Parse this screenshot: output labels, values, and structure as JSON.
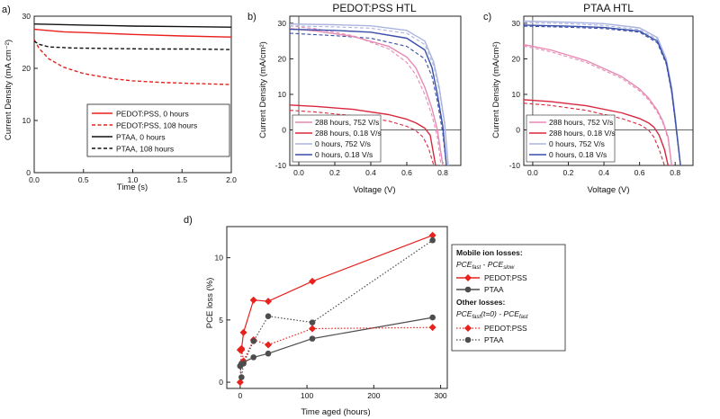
{
  "chart_data": [
    {
      "id": "a",
      "type": "line",
      "panel_label": "a)",
      "title": "",
      "xlabel": "Time (s)",
      "ylabel": "Current Density (mA cm⁻²)",
      "xlim": [
        0,
        2
      ],
      "ylim": [
        0,
        30
      ],
      "xticks": [
        0.0,
        0.5,
        1.0,
        1.5,
        2.0
      ],
      "xtick_labels": [
        "0.0",
        "0.5",
        "1.0",
        "1.5",
        "2.0"
      ],
      "yticks": [
        0,
        10,
        20,
        30
      ],
      "ytick_labels": [
        "0",
        "10",
        "20",
        "30"
      ],
      "legend_position": "bottom-right",
      "series": [
        {
          "name": "PEDOT:PSS, 0 hours",
          "color": "#e8211d",
          "dash": "solid",
          "x": [
            0,
            0.05,
            0.3,
            0.6,
            1.0,
            1.5,
            2.0
          ],
          "y": [
            27.5,
            27.4,
            27.0,
            26.8,
            26.5,
            26.2,
            26.0
          ]
        },
        {
          "name": "PEDOT:PSS, 108 hours",
          "color": "#e8211d",
          "dash": "dashed",
          "x": [
            0,
            0.05,
            0.15,
            0.3,
            0.5,
            0.8,
            1.0,
            1.3,
            1.6,
            2.0
          ],
          "y": [
            25.5,
            23.8,
            21.8,
            20.2,
            19.0,
            18.0,
            17.6,
            17.3,
            17.1,
            16.9
          ]
        },
        {
          "name": "PTAA, 0 hours",
          "color": "#111111",
          "dash": "solid",
          "x": [
            0,
            0.5,
            1.0,
            1.5,
            2.0
          ],
          "y": [
            28.5,
            28.3,
            28.1,
            28.0,
            27.9
          ]
        },
        {
          "name": "PTAA, 108 hours",
          "color": "#111111",
          "dash": "dashed",
          "x": [
            0,
            0.05,
            0.15,
            0.4,
            0.8,
            1.2,
            1.6,
            2.0
          ],
          "y": [
            25.2,
            24.6,
            24.1,
            23.9,
            23.8,
            23.7,
            23.7,
            23.6
          ]
        }
      ]
    },
    {
      "id": "b",
      "type": "line",
      "panel_label": "b)",
      "title": "PEDOT:PSS HTL",
      "xlabel": "Voltage (V)",
      "ylabel": "Current Density (mA/cm²)",
      "xlim": [
        -0.05,
        0.9
      ],
      "ylim": [
        -10,
        32
      ],
      "xticks": [
        0.0,
        0.2,
        0.4,
        0.6,
        0.8
      ],
      "xtick_labels": [
        "0.0",
        "0.2",
        "0.4",
        "0.6",
        "0.8"
      ],
      "yticks": [
        -10,
        0,
        10,
        20,
        30
      ],
      "ytick_labels": [
        "-10",
        "0",
        "10",
        "20",
        "30"
      ],
      "legend_position": "bottom-left",
      "series": [
        {
          "name": "288 hours, 752 V/s",
          "color": "#e78ab4",
          "x": [
            -0.05,
            0.1,
            0.3,
            0.5,
            0.6,
            0.65,
            0.7,
            0.74,
            0.77,
            0.8
          ],
          "y": [
            28.5,
            27.8,
            26.3,
            23.5,
            20.5,
            17.5,
            12.0,
            6.0,
            0.0,
            -10.0
          ]
        },
        {
          "name": "288 hours, 0.18 V/s",
          "color": "#d8273f",
          "x": [
            -0.05,
            0.1,
            0.3,
            0.5,
            0.6,
            0.65,
            0.7,
            0.73,
            0.76
          ],
          "y": [
            7.0,
            6.6,
            5.8,
            4.3,
            3.0,
            2.0,
            0.5,
            -1.5,
            -10.0
          ]
        },
        {
          "name": "0 hours, 752 V/s",
          "color": "#aab4de",
          "x": [
            -0.05,
            0.2,
            0.4,
            0.6,
            0.7,
            0.75,
            0.78,
            0.81,
            0.83
          ],
          "y": [
            29.8,
            29.6,
            29.3,
            28.0,
            25.0,
            19.0,
            12.0,
            2.0,
            -10.0
          ]
        },
        {
          "name": "0 hours, 0.18 V/s",
          "color": "#3a4fa8",
          "x": [
            -0.05,
            0.2,
            0.4,
            0.6,
            0.7,
            0.74,
            0.77,
            0.8,
            0.82
          ],
          "y": [
            28.3,
            28.0,
            27.5,
            25.8,
            22.5,
            17.5,
            10.0,
            1.0,
            -10.0
          ]
        }
      ],
      "dashed_series": [
        {
          "color": "#e78ab4",
          "x": [
            -0.05,
            0.1,
            0.3,
            0.5,
            0.6,
            0.65,
            0.7,
            0.74,
            0.77,
            0.79
          ],
          "y": [
            29.3,
            28.4,
            26.5,
            22.8,
            19.0,
            15.5,
            10.0,
            4.0,
            -2.0,
            -10.0
          ]
        },
        {
          "color": "#d8273f",
          "x": [
            -0.05,
            0.1,
            0.3,
            0.5,
            0.6,
            0.65,
            0.69,
            0.72,
            0.75
          ],
          "y": [
            5.5,
            5.0,
            4.0,
            2.5,
            1.0,
            -0.2,
            -2.0,
            -5.0,
            -10.0
          ]
        },
        {
          "color": "#aab4de",
          "x": [
            -0.05,
            0.2,
            0.4,
            0.6,
            0.7,
            0.75,
            0.78,
            0.81,
            0.83
          ],
          "y": [
            29.3,
            29.0,
            28.6,
            27.2,
            24.0,
            18.0,
            11.0,
            1.5,
            -10.0
          ]
        },
        {
          "color": "#3a4fa8",
          "x": [
            -0.05,
            0.2,
            0.4,
            0.6,
            0.7,
            0.74,
            0.77,
            0.8,
            0.82
          ],
          "y": [
            27.2,
            26.5,
            25.8,
            23.5,
            20.0,
            15.0,
            8.0,
            -1.0,
            -10.0
          ]
        }
      ]
    },
    {
      "id": "c",
      "type": "line",
      "panel_label": "c)",
      "title": "PTAA HTL",
      "xlabel": "Voltage (V)",
      "ylabel": "Current Density (mA/cm²)",
      "xlim": [
        -0.05,
        0.9
      ],
      "ylim": [
        -10,
        32
      ],
      "xticks": [
        0.0,
        0.2,
        0.4,
        0.6,
        0.8
      ],
      "xtick_labels": [
        "0.0",
        "0.2",
        "0.4",
        "0.6",
        "0.8"
      ],
      "yticks": [
        -10,
        0,
        10,
        20,
        30
      ],
      "ytick_labels": [
        "-10",
        "0",
        "10",
        "20",
        "30"
      ],
      "legend_position": "bottom-left",
      "series": [
        {
          "name": "288 hours, 752 V/s",
          "color": "#e78ab4",
          "x": [
            -0.05,
            0.1,
            0.3,
            0.5,
            0.6,
            0.65,
            0.7,
            0.73,
            0.76,
            0.78
          ],
          "y": [
            24.0,
            22.5,
            19.5,
            15.0,
            11.5,
            9.0,
            5.5,
            2.5,
            -2.0,
            -10.0
          ]
        },
        {
          "name": "288 hours, 0.18 V/s",
          "color": "#d8273f",
          "x": [
            -0.05,
            0.1,
            0.3,
            0.5,
            0.6,
            0.65,
            0.68,
            0.71,
            0.74,
            0.76
          ],
          "y": [
            8.5,
            8.0,
            6.8,
            4.8,
            3.2,
            2.0,
            0.8,
            -1.5,
            -5.5,
            -10.0
          ]
        },
        {
          "name": "0 hours, 752 V/s",
          "color": "#aab4de",
          "x": [
            -0.05,
            0.2,
            0.4,
            0.6,
            0.7,
            0.75,
            0.78,
            0.8,
            0.83
          ],
          "y": [
            30.6,
            30.3,
            29.9,
            28.7,
            26.0,
            20.0,
            12.0,
            4.0,
            -10.0
          ]
        },
        {
          "name": "0 hours, 0.18 V/s",
          "color": "#3a4fa8",
          "x": [
            -0.05,
            0.2,
            0.4,
            0.6,
            0.7,
            0.75,
            0.78,
            0.8,
            0.83
          ],
          "y": [
            29.5,
            29.2,
            28.8,
            27.8,
            25.0,
            19.0,
            11.0,
            3.0,
            -10.0
          ]
        }
      ],
      "dashed_series": [
        {
          "color": "#e78ab4",
          "x": [
            -0.05,
            0.1,
            0.3,
            0.5,
            0.6,
            0.65,
            0.7,
            0.73,
            0.76,
            0.78
          ],
          "y": [
            23.6,
            22.0,
            19.0,
            14.5,
            11.0,
            8.5,
            5.0,
            2.0,
            -2.5,
            -10.0
          ]
        },
        {
          "color": "#d8273f",
          "x": [
            -0.05,
            0.1,
            0.3,
            0.5,
            0.6,
            0.65,
            0.68,
            0.71,
            0.74
          ],
          "y": [
            7.5,
            6.9,
            5.5,
            3.2,
            1.5,
            0.0,
            -2.0,
            -5.5,
            -10.0
          ]
        },
        {
          "color": "#aab4de",
          "x": [
            -0.05,
            0.2,
            0.4,
            0.6,
            0.7,
            0.75,
            0.78,
            0.8,
            0.83
          ],
          "y": [
            30.2,
            29.9,
            29.4,
            28.2,
            25.5,
            19.5,
            11.5,
            3.5,
            -10.0
          ]
        },
        {
          "color": "#3a4fa8",
          "x": [
            -0.05,
            0.2,
            0.4,
            0.6,
            0.7,
            0.75,
            0.78,
            0.8,
            0.83
          ],
          "y": [
            29.2,
            28.9,
            28.5,
            27.5,
            24.5,
            18.5,
            10.5,
            2.5,
            -10.0
          ]
        }
      ]
    },
    {
      "id": "d",
      "type": "line",
      "panel_label": "d)",
      "title": "",
      "xlabel": "Time aged (hours)",
      "ylabel": "PCE loss (%)",
      "xlim": [
        -20,
        310
      ],
      "ylim": [
        -0.5,
        12.5
      ],
      "xticks": [
        0,
        100,
        200,
        300
      ],
      "xtick_labels": [
        "0",
        "100",
        "200",
        "300"
      ],
      "yticks": [
        0,
        5,
        10
      ],
      "ytick_labels": [
        "0",
        "5",
        "10"
      ],
      "legend_position": "outside-right",
      "legend": {
        "mobile_header": "Mobile ion losses:",
        "mobile_formula": {
          "a": "PCE",
          "a_sub": "fast",
          "b": " - PCE",
          "b_sub": "slow"
        },
        "other_header": "Other losses:",
        "other_formula": {
          "a": "PCE",
          "a_sub": "fast",
          "mid": "(t=0) - PCE",
          "b_sub": "fast"
        }
      },
      "series": [
        {
          "name": "PEDOT:PSS",
          "group": "mobile",
          "color": "#e8211d",
          "marker": "diamond",
          "dash": "solid",
          "x": [
            0,
            2,
            5,
            20,
            42,
            108,
            288
          ],
          "y": [
            2.6,
            2.6,
            4.0,
            6.6,
            6.5,
            8.1,
            11.8
          ]
        },
        {
          "name": "PTAA",
          "group": "mobile",
          "color": "#4d4d4d",
          "marker": "circle",
          "dash": "solid",
          "x": [
            0,
            2,
            5,
            20,
            42,
            108,
            288
          ],
          "y": [
            1.3,
            1.5,
            1.6,
            2.0,
            2.3,
            3.5,
            5.2
          ]
        },
        {
          "name": "PEDOT:PSS",
          "group": "other",
          "color": "#e8211d",
          "marker": "diamond",
          "dash": "dotted",
          "x": [
            0,
            2,
            5,
            20,
            42,
            108,
            288
          ],
          "y": [
            0.0,
            2.7,
            1.7,
            3.4,
            3.0,
            4.3,
            4.4
          ]
        },
        {
          "name": "PTAA",
          "group": "other",
          "color": "#4d4d4d",
          "marker": "circle",
          "dash": "dotted",
          "x": [
            0,
            2,
            5,
            20,
            42,
            108,
            288
          ],
          "y": [
            1.3,
            0.4,
            1.5,
            3.3,
            5.3,
            4.8,
            11.4
          ]
        }
      ]
    }
  ]
}
